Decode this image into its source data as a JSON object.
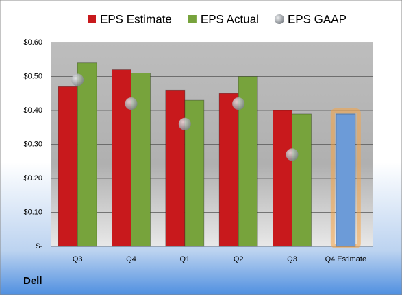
{
  "chart_data": {
    "type": "bar",
    "categories": [
      "Q3",
      "Q4",
      "Q1",
      "Q2",
      "Q3",
      "Q4 Estimate"
    ],
    "series": [
      {
        "name": "EPS Estimate",
        "color": "#c8191c",
        "values": [
          0.47,
          0.52,
          0.46,
          0.45,
          0.4,
          0.39
        ]
      },
      {
        "name": "EPS Actual",
        "color": "#77a33c",
        "values": [
          0.54,
          0.51,
          0.43,
          0.5,
          0.39,
          null
        ]
      },
      {
        "name": "EPS GAAP",
        "color": "#9aa0a6",
        "type": "scatter",
        "values": [
          0.49,
          0.42,
          0.36,
          0.42,
          0.27,
          null
        ]
      }
    ],
    "highlight": {
      "index": 5,
      "color": "#6c9bd8",
      "glow": "#f5a445"
    },
    "ylim": [
      0,
      0.6
    ],
    "yticks": [
      {
        "value": 0,
        "label": "$-"
      },
      {
        "value": 0.1,
        "label": "$0.10"
      },
      {
        "value": 0.2,
        "label": "$0.20"
      },
      {
        "value": 0.3,
        "label": "$0.30"
      },
      {
        "value": 0.4,
        "label": "$0.40"
      },
      {
        "value": 0.5,
        "label": "$0.50"
      },
      {
        "value": 0.6,
        "label": "$0.60"
      }
    ],
    "grid": true,
    "legend": "top",
    "footer": "Dell"
  }
}
